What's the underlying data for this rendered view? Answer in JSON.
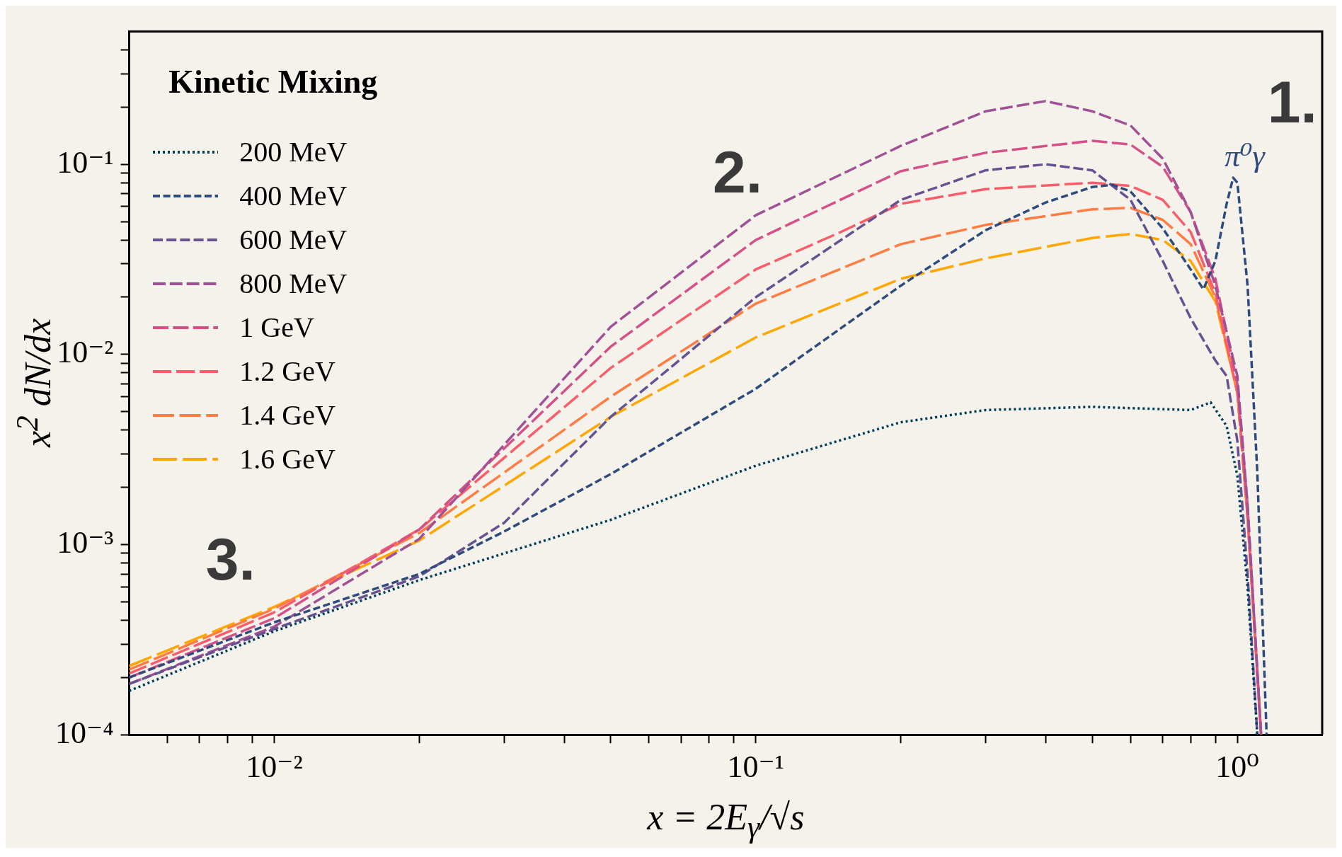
{
  "chart_data": {
    "type": "line",
    "xlabel": "x = 2E$_{γ}$/√s",
    "ylabel": "x$^{2}$ dN/dx",
    "log": "xy",
    "grid": false,
    "legend": "top left",
    "marker": "none",
    "xlim": [
      0.005,
      1.5
    ],
    "ylim": [
      0.0001,
      0.5
    ],
    "xticks": [
      {
        "value": 0.006,
        "label": null
      },
      {
        "value": 0.007,
        "label": null
      },
      {
        "value": 0.008,
        "label": null
      },
      {
        "value": 0.009,
        "label": null
      },
      {
        "value": 0.01,
        "label": "10⁻²"
      },
      {
        "value": 0.02,
        "label": null
      },
      {
        "value": 0.03,
        "label": null
      },
      {
        "value": 0.04,
        "label": null
      },
      {
        "value": 0.05,
        "label": null
      },
      {
        "value": 0.06,
        "label": null
      },
      {
        "value": 0.07,
        "label": null
      },
      {
        "value": 0.08,
        "label": null
      },
      {
        "value": 0.09,
        "label": null
      },
      {
        "value": 0.1,
        "label": "10⁻¹"
      },
      {
        "value": 0.2,
        "label": null
      },
      {
        "value": 0.3,
        "label": null
      },
      {
        "value": 0.4,
        "label": null
      },
      {
        "value": 0.5,
        "label": null
      },
      {
        "value": 0.6,
        "label": null
      },
      {
        "value": 0.7,
        "label": null
      },
      {
        "value": 0.8,
        "label": null
      },
      {
        "value": 0.9,
        "label": null
      },
      {
        "value": 1,
        "label": "10⁰"
      }
    ],
    "yticks": [
      {
        "value": 0.0001,
        "label": "10⁻⁴"
      },
      {
        "value": 0.0002,
        "label": null
      },
      {
        "value": 0.0003,
        "label": null
      },
      {
        "value": 0.0004,
        "label": null
      },
      {
        "value": 0.0005,
        "label": null
      },
      {
        "value": 0.0006,
        "label": null
      },
      {
        "value": 0.0007,
        "label": null
      },
      {
        "value": 0.0008,
        "label": null
      },
      {
        "value": 0.0009,
        "label": null
      },
      {
        "value": 0.001,
        "label": "10⁻³"
      },
      {
        "value": 0.002,
        "label": null
      },
      {
        "value": 0.003,
        "label": null
      },
      {
        "value": 0.004,
        "label": null
      },
      {
        "value": 0.005,
        "label": null
      },
      {
        "value": 0.006,
        "label": null
      },
      {
        "value": 0.007,
        "label": null
      },
      {
        "value": 0.008,
        "label": null
      },
      {
        "value": 0.009,
        "label": null
      },
      {
        "value": 0.01,
        "label": "10⁻²"
      },
      {
        "value": 0.02,
        "label": null
      },
      {
        "value": 0.03,
        "label": null
      },
      {
        "value": 0.04,
        "label": null
      },
      {
        "value": 0.05,
        "label": null
      },
      {
        "value": 0.06,
        "label": null
      },
      {
        "value": 0.07,
        "label": null
      },
      {
        "value": 0.08,
        "label": null
      },
      {
        "value": 0.09,
        "label": null
      },
      {
        "value": 0.1,
        "label": "10⁻¹"
      },
      {
        "value": 0.2,
        "label": null
      },
      {
        "value": 0.3,
        "label": null
      },
      {
        "value": 0.4,
        "label": null
      }
    ],
    "annotations": [
      "Kinetic Mixing",
      "1.",
      "2.",
      "3.",
      "π⁰γ"
    ],
    "series": [
      {
        "name": "200 MeV",
        "color": "#003f5c",
        "line_style": "dotted",
        "x": [
          0.005,
          0.01,
          0.02,
          0.05,
          0.1,
          0.2,
          0.3,
          0.5,
          0.8,
          0.88,
          0.95,
          1.0,
          1.05,
          1.1
        ],
        "values": [
          0.00017,
          0.00035,
          0.00065,
          0.00135,
          0.0026,
          0.0044,
          0.0051,
          0.0053,
          0.0051,
          0.0056,
          0.0042,
          0.0023,
          0.00059,
          0.0001
        ]
      },
      {
        "name": "400 MeV",
        "color": "#2f4b7c",
        "line_style": "dashed",
        "x": [
          0.005,
          0.01,
          0.02,
          0.03,
          0.05,
          0.1,
          0.2,
          0.3,
          0.4,
          0.5,
          0.55,
          0.6,
          0.7,
          0.8,
          0.85,
          0.9,
          0.95,
          0.98,
          1.0,
          1.05,
          1.1,
          1.15
        ],
        "values": [
          0.0002,
          0.00039,
          0.0007,
          0.00117,
          0.00235,
          0.0066,
          0.023,
          0.045,
          0.063,
          0.076,
          0.078,
          0.072,
          0.046,
          0.028,
          0.022,
          0.031,
          0.062,
          0.085,
          0.08,
          0.023,
          0.0024,
          0.0001
        ]
      },
      {
        "name": "600 MeV",
        "color": "#665191",
        "line_style": "dashed",
        "x": [
          0.005,
          0.01,
          0.02,
          0.03,
          0.05,
          0.1,
          0.2,
          0.3,
          0.4,
          0.5,
          0.6,
          0.7,
          0.8,
          0.9,
          0.95,
          1.0,
          1.05,
          1.1
        ],
        "values": [
          0.000185,
          0.00036,
          0.00068,
          0.0013,
          0.0047,
          0.02,
          0.065,
          0.093,
          0.1,
          0.093,
          0.065,
          0.031,
          0.0155,
          0.0093,
          0.0077,
          0.0035,
          0.0007,
          0.0001
        ]
      },
      {
        "name": "800 MeV",
        "color": "#a05195",
        "line_style": "dashed",
        "x": [
          0.005,
          0.01,
          0.02,
          0.05,
          0.1,
          0.2,
          0.3,
          0.4,
          0.5,
          0.6,
          0.7,
          0.8,
          0.9,
          1.0,
          1.05,
          1.12
        ],
        "values": [
          0.000185,
          0.00037,
          0.00107,
          0.014,
          0.054,
          0.125,
          0.19,
          0.215,
          0.19,
          0.16,
          0.107,
          0.056,
          0.023,
          0.0077,
          0.0016,
          0.0001
        ]
      },
      {
        "name": "1 GeV",
        "color": "#d45087",
        "line_style": "dashed",
        "x": [
          0.005,
          0.01,
          0.02,
          0.05,
          0.1,
          0.2,
          0.3,
          0.5,
          0.6,
          0.7,
          0.8,
          0.9,
          1.0,
          1.05,
          1.12
        ],
        "values": [
          0.0002,
          0.00041,
          0.0012,
          0.011,
          0.04,
          0.092,
          0.115,
          0.133,
          0.127,
          0.097,
          0.056,
          0.025,
          0.007,
          0.0016,
          0.0001
        ]
      },
      {
        "name": "1.2 GeV",
        "color": "#f95d6a",
        "line_style": "dashed",
        "x": [
          0.005,
          0.01,
          0.02,
          0.05,
          0.1,
          0.15,
          0.2,
          0.3,
          0.5,
          0.6,
          0.7,
          0.8,
          0.9,
          1.0,
          1.05,
          1.12
        ],
        "values": [
          0.00021,
          0.00044,
          0.0012,
          0.0085,
          0.028,
          0.044,
          0.062,
          0.074,
          0.08,
          0.077,
          0.065,
          0.044,
          0.021,
          0.0063,
          0.0014,
          0.0001
        ]
      },
      {
        "name": "1.4 GeV",
        "color": "#ff7c43",
        "line_style": "dashed",
        "x": [
          0.005,
          0.01,
          0.02,
          0.05,
          0.1,
          0.2,
          0.3,
          0.5,
          0.6,
          0.7,
          0.8,
          0.9,
          1.0,
          1.05,
          1.12
        ],
        "values": [
          0.00022,
          0.00046,
          0.00115,
          0.006,
          0.0185,
          0.038,
          0.048,
          0.058,
          0.059,
          0.051,
          0.038,
          0.02,
          0.0063,
          0.0014,
          0.0001
        ]
      },
      {
        "name": "1.6 GeV",
        "color": "#ffa600",
        "line_style": "dashed",
        "x": [
          0.005,
          0.01,
          0.02,
          0.05,
          0.1,
          0.2,
          0.3,
          0.5,
          0.6,
          0.7,
          0.8,
          0.9,
          1.0,
          1.05,
          1.12
        ],
        "values": [
          0.00023,
          0.00047,
          0.00105,
          0.0047,
          0.0123,
          0.025,
          0.032,
          0.041,
          0.043,
          0.04,
          0.031,
          0.019,
          0.0063,
          0.0014,
          0.0001
        ]
      }
    ]
  }
}
